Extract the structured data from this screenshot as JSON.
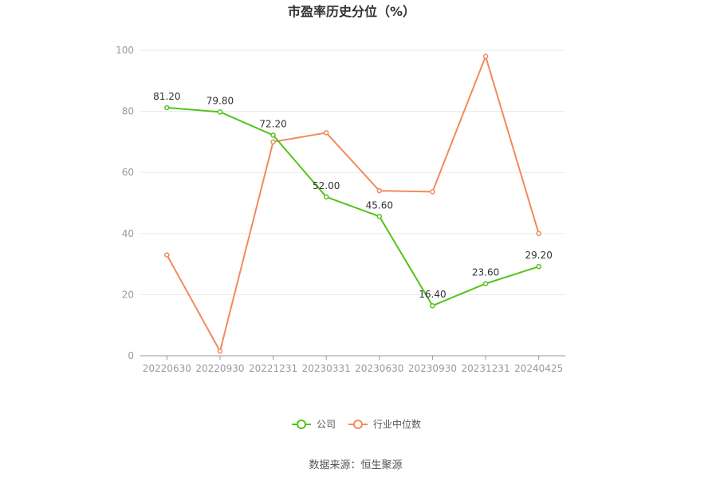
{
  "chart_data": {
    "type": "line",
    "title": "市盈率历史分位（%）",
    "categories": [
      "20220630",
      "20220930",
      "20221231",
      "20230331",
      "20230630",
      "20230930",
      "20231231",
      "20240425"
    ],
    "series": [
      {
        "name": "公司",
        "color": "#52c41a",
        "values": [
          81.2,
          79.8,
          72.2,
          52.0,
          45.6,
          16.4,
          23.6,
          29.2
        ],
        "labels": [
          "81.20",
          "79.80",
          "72.20",
          "52.00",
          "45.60",
          "16.40",
          "23.60",
          "29.20"
        ]
      },
      {
        "name": "行业中位数",
        "color": "#f28a5c",
        "values": [
          33.0,
          1.5,
          70.0,
          73.0,
          54.0,
          53.7,
          98.0,
          40.0
        ]
      }
    ],
    "ylim": [
      0,
      100
    ],
    "yticks": [
      0,
      20,
      40,
      60,
      80,
      100
    ],
    "grid": true,
    "legend": "bottom-center"
  },
  "source": "数据来源：恒生聚源"
}
